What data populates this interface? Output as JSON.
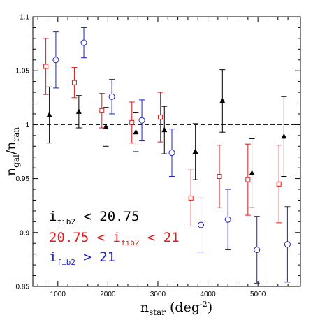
{
  "chart_data": {
    "type": "scatter",
    "xlabel": "n_star (deg^-2)",
    "ylabel": "n_gal/n_ran",
    "xlim": [
      500,
      5850
    ],
    "ylim": [
      0.85,
      1.1
    ],
    "x_ticks": [
      1000,
      2000,
      3000,
      4000,
      5000
    ],
    "x_tick_labels": [
      "1000",
      "2000",
      "3000",
      "4000",
      "5000"
    ],
    "y_ticks": [
      0.85,
      0.9,
      0.95,
      1,
      1.05,
      1.1
    ],
    "y_tick_labels": [
      "0.85",
      "0.9",
      "0.95",
      "1",
      "1.05",
      "1.1"
    ],
    "reference_line": {
      "y": 1.0,
      "style": "dashed"
    },
    "grid": false,
    "legend_placement": "bottom-left",
    "series": [
      {
        "legend": {
          "pre": "i",
          "sub": "fib2",
          "post": " < 20.75"
        },
        "color": "#000000",
        "marker": "filled-triangle",
        "points": [
          {
            "x": 830,
            "y": 1.009,
            "err": 0.026
          },
          {
            "x": 1420,
            "y": 1.012,
            "err": 0.015
          },
          {
            "x": 1960,
            "y": 0.998,
            "err": 0.018
          },
          {
            "x": 2560,
            "y": 0.993,
            "err": 0.018
          },
          {
            "x": 3130,
            "y": 0.995,
            "err": 0.022
          },
          {
            "x": 3750,
            "y": 0.975,
            "err": 0.026
          },
          {
            "x": 4290,
            "y": 1.022,
            "err": 0.029
          },
          {
            "x": 4880,
            "y": 0.955,
            "err": 0.032
          },
          {
            "x": 5520,
            "y": 0.989,
            "err": 0.037
          }
        ]
      },
      {
        "legend": {
          "pre": "20.75 < i",
          "sub": "fib2",
          "post": " < 21"
        },
        "color": "#e41a1c",
        "marker": "open-square",
        "points": [
          {
            "x": 760,
            "y": 1.054,
            "err": 0.026
          },
          {
            "x": 1330,
            "y": 1.039,
            "err": 0.014
          },
          {
            "x": 1880,
            "y": 1.013,
            "err": 0.016
          },
          {
            "x": 2480,
            "y": 1.002,
            "err": 0.019
          },
          {
            "x": 3050,
            "y": 1.007,
            "err": 0.023
          },
          {
            "x": 3660,
            "y": 0.932,
            "err": 0.026
          },
          {
            "x": 4230,
            "y": 0.952,
            "err": 0.029
          },
          {
            "x": 4800,
            "y": 0.949,
            "err": 0.033
          },
          {
            "x": 5420,
            "y": 0.945,
            "err": 0.036
          }
        ]
      },
      {
        "legend": {
          "pre": "i",
          "sub": "fib2",
          "post": " > 21"
        },
        "color": "#1f1fd0",
        "marker": "open-circle",
        "points": [
          {
            "x": 960,
            "y": 1.06,
            "err": 0.026
          },
          {
            "x": 1520,
            "y": 1.076,
            "err": 0.014
          },
          {
            "x": 2080,
            "y": 1.026,
            "err": 0.016
          },
          {
            "x": 2680,
            "y": 1.004,
            "err": 0.019
          },
          {
            "x": 3280,
            "y": 0.974,
            "err": 0.022
          },
          {
            "x": 3860,
            "y": 0.907,
            "err": 0.025
          },
          {
            "x": 4400,
            "y": 0.912,
            "err": 0.028
          },
          {
            "x": 4980,
            "y": 0.884,
            "err": 0.031
          },
          {
            "x": 5590,
            "y": 0.889,
            "err": 0.035
          }
        ]
      }
    ]
  }
}
